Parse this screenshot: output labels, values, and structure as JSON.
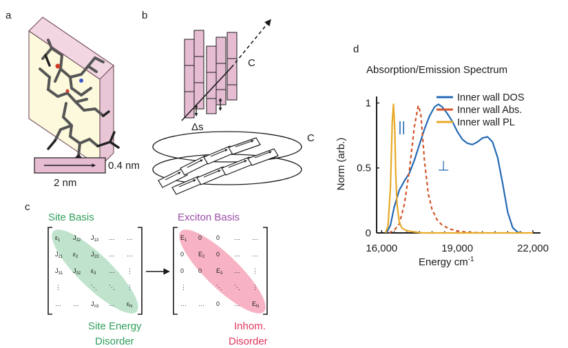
{
  "panel_labels": {
    "a": "a",
    "b": "b",
    "c": "c",
    "d": "d"
  },
  "panel_a": {
    "width_label": "2 nm",
    "thickness_label": "0.4 nm"
  },
  "panel_b": {
    "axis_label_top": "C",
    "axis_label_bottom": "C",
    "shift_label": "Δs"
  },
  "panel_c": {
    "site_basis_title": "Site Basis",
    "exciton_basis_title": "Exciton Basis",
    "site_disorder_line1": "Site Energy",
    "site_disorder_line2": "Disorder",
    "inhom_line1": "Inhom.",
    "inhom_line2": "Disorder",
    "colors": {
      "site": "#2e9e5b",
      "exciton": "#9b4ea8",
      "inhom": "#e0365a",
      "site_ellipse": "#bfe3cc",
      "exciton_ellipse": "#f7b3c4"
    },
    "site_matrix": [
      [
        "ε",
        "1",
        "J",
        "12",
        "J",
        "13",
        "…",
        "",
        "…",
        ""
      ],
      [
        "J",
        "21",
        "ε",
        "2",
        "J",
        "23",
        "…",
        "",
        "…",
        ""
      ],
      [
        "J",
        "31",
        "J",
        "32",
        "ε",
        "3",
        "…",
        "",
        "⋮",
        ""
      ],
      [
        "⋮",
        "",
        "",
        "",
        "⋱",
        "",
        "⋱",
        "",
        "⋮",
        ""
      ],
      [
        "…",
        "",
        "…",
        "",
        "J",
        "n3",
        "…",
        "",
        "ε",
        "N"
      ]
    ],
    "exciton_matrix": [
      [
        "E",
        "1",
        "0",
        "",
        "0",
        "",
        "…",
        "",
        "…",
        ""
      ],
      [
        "0",
        "",
        "E",
        "2",
        "0",
        "",
        "…",
        "",
        "…",
        ""
      ],
      [
        "0",
        "",
        "0",
        "",
        "E",
        "3",
        "…",
        "",
        "⋮",
        ""
      ],
      [
        "⋮",
        "",
        "",
        "",
        "⋱",
        "",
        "⋱",
        "",
        "⋮",
        ""
      ],
      [
        "…",
        "",
        "…",
        "",
        "0",
        "",
        "…",
        "",
        "E",
        "N"
      ]
    ]
  },
  "chart_data": {
    "type": "line",
    "title": "Absorption/Emission Spectrum",
    "xlabel": "Energy cm",
    "xlabel_sup": "-1",
    "ylabel": "Norm (arb.)",
    "xlim": [
      15800,
      22300
    ],
    "ylim": [
      0,
      1.05
    ],
    "xticks": [
      {
        "value": 16000,
        "label": "16,000"
      },
      {
        "value": 19000,
        "label": "19,000"
      },
      {
        "value": 22000,
        "label": "22,000"
      }
    ],
    "yticks": [
      {
        "value": 0,
        "label": "0"
      },
      {
        "value": 0.5,
        "label": "0.5"
      },
      {
        "value": 1,
        "label": "1"
      }
    ],
    "legend_position": "top-right",
    "annotations": [
      {
        "text": "||",
        "x": 16800,
        "y": 0.78,
        "color": "#2369b4"
      },
      {
        "text": "⊥",
        "x": 18450,
        "y": 0.48,
        "color": "#2369b4"
      }
    ],
    "series": [
      {
        "name": "Inner wall DOS",
        "color": "#2369b4",
        "style": "solid",
        "x": [
          16200,
          16350,
          16500,
          16700,
          16900,
          17100,
          17300,
          17500,
          17700,
          17900,
          18100,
          18250,
          18400,
          18600,
          18800,
          19000,
          19200,
          19400,
          19600,
          19800,
          20000,
          20200,
          20400,
          20600,
          20800,
          21000,
          21200,
          21400,
          21600
        ],
        "y": [
          0.0,
          0.06,
          0.2,
          0.33,
          0.4,
          0.46,
          0.56,
          0.68,
          0.8,
          0.9,
          0.97,
          0.99,
          0.97,
          0.92,
          0.86,
          0.78,
          0.72,
          0.69,
          0.68,
          0.7,
          0.73,
          0.74,
          0.7,
          0.58,
          0.38,
          0.16,
          0.04,
          0.005,
          0.0
        ]
      },
      {
        "name": "Inner wall Abs.",
        "color": "#d2552a",
        "style": "dashed",
        "x": [
          16300,
          16500,
          16700,
          16900,
          17100,
          17300,
          17450,
          17550,
          17700,
          17850,
          18000,
          18200,
          18400,
          18700,
          19000,
          19400,
          20000
        ],
        "y": [
          0.0,
          0.02,
          0.07,
          0.22,
          0.48,
          0.82,
          0.98,
          0.92,
          0.55,
          0.3,
          0.18,
          0.1,
          0.06,
          0.03,
          0.015,
          0.005,
          0.0
        ]
      },
      {
        "name": "Inner wall PL",
        "color": "#e8a928",
        "style": "solid",
        "x": [
          16150,
          16250,
          16350,
          16420,
          16470,
          16520,
          16560,
          16610,
          16700,
          16800,
          16950,
          17200,
          17600,
          18500,
          20000,
          22000
        ],
        "y": [
          0.0,
          0.05,
          0.35,
          0.85,
          0.99,
          0.8,
          0.45,
          0.22,
          0.08,
          0.04,
          0.02,
          0.01,
          0.0,
          0.0,
          0.0,
          0.0
        ]
      }
    ]
  }
}
